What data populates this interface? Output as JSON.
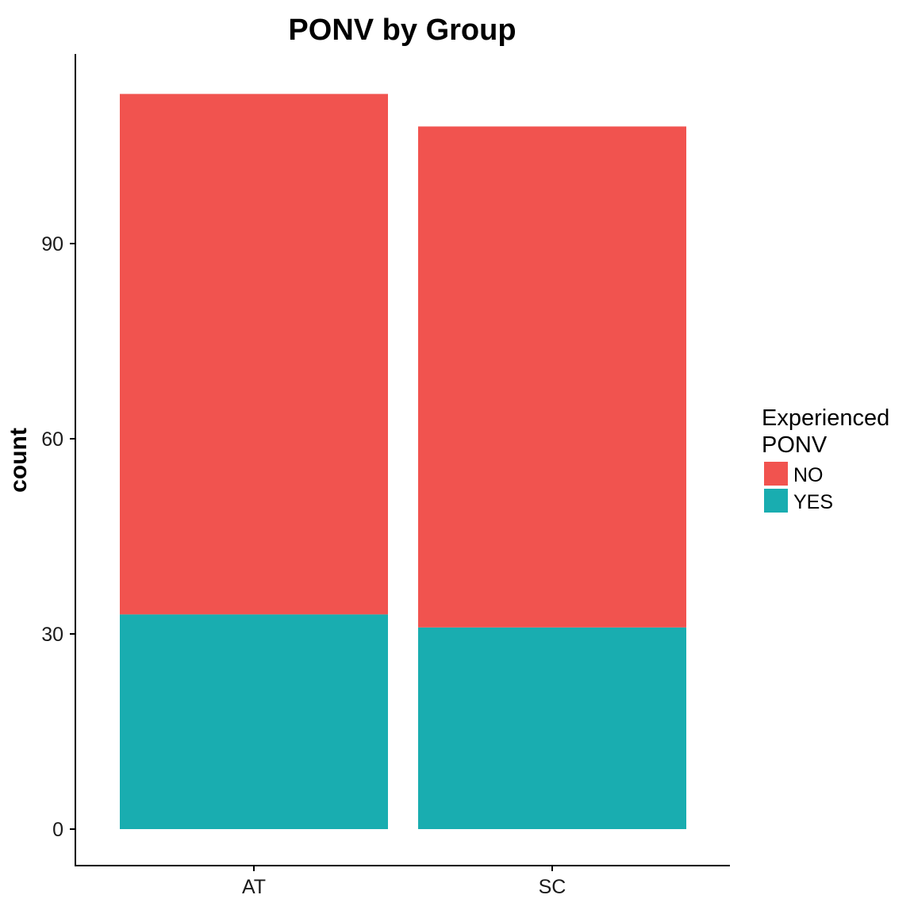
{
  "chart_data": {
    "type": "bar",
    "stacked": true,
    "title": "PONV by Group",
    "xlabel": "",
    "ylabel": "count",
    "categories": [
      "AT",
      "SC"
    ],
    "series": [
      {
        "name": "YES",
        "color": "#19ADB0",
        "values": [
          33,
          31
        ]
      },
      {
        "name": "NO",
        "color": "#F1534F",
        "values": [
          80,
          77
        ]
      }
    ],
    "ylim": [
      0,
      113
    ],
    "yticks": [
      0,
      30,
      60,
      90
    ],
    "grid": false,
    "legend": {
      "title_lines": [
        "Experienced",
        "PONV"
      ],
      "entries": [
        {
          "label": "NO",
          "color": "#F1534F"
        },
        {
          "label": "YES",
          "color": "#19ADB0"
        }
      ],
      "position": "right"
    },
    "axis_color": "#000000"
  }
}
